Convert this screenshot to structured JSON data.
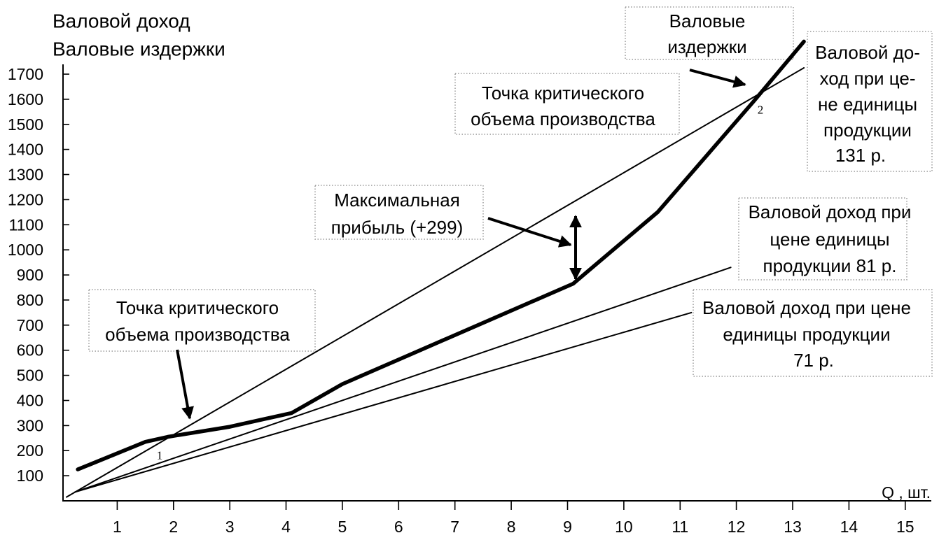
{
  "chart_data": {
    "type": "line",
    "y_title_lines": [
      "Валовой доход",
      "Валовые издержки"
    ],
    "x_label": "Q , шт.",
    "x_ticks": [
      1,
      2,
      3,
      4,
      5,
      6,
      7,
      8,
      9,
      10,
      11,
      12,
      13,
      14,
      15
    ],
    "y_ticks": [
      100,
      200,
      300,
      400,
      500,
      600,
      700,
      800,
      900,
      1000,
      1100,
      1200,
      1300,
      1400,
      1500,
      1600,
      1700
    ],
    "xlim": [
      0,
      15.5
    ],
    "ylim": [
      0,
      1700
    ],
    "grid": false,
    "line_color": "#000000",
    "series": [
      {
        "label_lines": [
          "Валовые",
          "издержки"
        ],
        "points": [
          [
            0.3,
            125
          ],
          [
            1.5,
            235
          ],
          [
            1.9,
            255
          ],
          [
            3.0,
            295
          ],
          [
            4.1,
            350
          ],
          [
            5.0,
            465
          ],
          [
            9.1,
            865
          ],
          [
            10.6,
            1150
          ],
          [
            12.3,
            1590
          ],
          [
            13.2,
            1830
          ]
        ]
      },
      {
        "label_lines": [
          "Валовой до-",
          "ход при це-",
          "не единицы",
          "продукции",
          "131 р."
        ],
        "points": [
          [
            0.1,
            15
          ],
          [
            13.2,
            1725
          ]
        ]
      },
      {
        "label_lines": [
          "Валовой доход при",
          "цене единицы",
          "продукции 81 р."
        ],
        "points": [
          [
            0.25,
            35
          ],
          [
            11.9,
            930
          ]
        ]
      },
      {
        "label_lines": [
          "Валовой доход при цене",
          "единицы продукции",
          "71 р."
        ],
        "points": [
          [
            0.25,
            35
          ],
          [
            11.2,
            750
          ]
        ]
      }
    ],
    "annotations": [
      {
        "lines": [
          "Точка критического",
          "объема производства"
        ],
        "marker": "1"
      },
      {
        "lines": [
          "Точка критического",
          "объема производства"
        ],
        "marker": "2"
      },
      {
        "lines": [
          "Максимальная",
          "прибыль (+299)"
        ]
      }
    ]
  }
}
